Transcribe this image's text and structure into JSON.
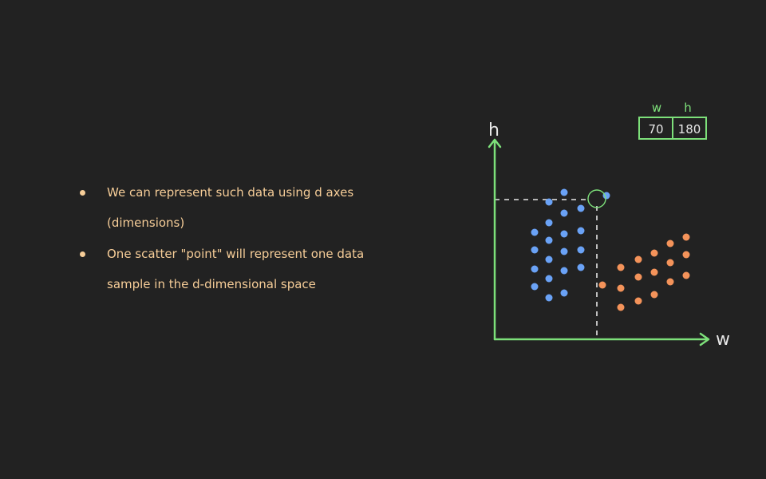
{
  "bullets": [
    "We can represent such data using d axes (dimensions)",
    "One scatter \"point\" will represent one data sample in the d-dimensional space"
  ],
  "colors": {
    "background": "#222222",
    "text": "#f6cd98",
    "axis": "#7de07a",
    "blue": "#6aa2f6",
    "orange": "#f4935a",
    "guide": "#e8e8e8"
  },
  "diagram": {
    "x_axis_label": "w",
    "y_axis_label": "h",
    "table": {
      "headers": [
        "w",
        "h"
      ],
      "values": [
        "70",
        "180"
      ]
    }
  },
  "chart_data": {
    "type": "scatter",
    "highlighted_point": {
      "w": 70,
      "h": 180
    },
    "series": [
      {
        "color": "blue",
        "points": [
          {
            "x": 0.68,
            "y": 0.86
          },
          {
            "x": 0.87,
            "y": 0.92
          },
          {
            "x": 1.08,
            "y": 0.82
          },
          {
            "x": 0.5,
            "y": 0.67
          },
          {
            "x": 0.68,
            "y": 0.73
          },
          {
            "x": 0.87,
            "y": 0.79
          },
          {
            "x": 1.08,
            "y": 0.68
          },
          {
            "x": 0.5,
            "y": 0.56
          },
          {
            "x": 0.68,
            "y": 0.62
          },
          {
            "x": 0.87,
            "y": 0.66
          },
          {
            "x": 1.08,
            "y": 0.56
          },
          {
            "x": 0.5,
            "y": 0.44
          },
          {
            "x": 0.68,
            "y": 0.5
          },
          {
            "x": 0.87,
            "y": 0.55
          },
          {
            "x": 1.08,
            "y": 0.45
          },
          {
            "x": 0.5,
            "y": 0.33
          },
          {
            "x": 0.68,
            "y": 0.38
          },
          {
            "x": 0.87,
            "y": 0.43
          },
          {
            "x": 0.68,
            "y": 0.26
          },
          {
            "x": 0.87,
            "y": 0.29
          },
          {
            "x": 1.4,
            "y": 0.9
          }
        ]
      },
      {
        "color": "orange",
        "points": [
          {
            "x": 1.35,
            "y": 0.34
          },
          {
            "x": 1.58,
            "y": 0.45
          },
          {
            "x": 1.58,
            "y": 0.32
          },
          {
            "x": 1.58,
            "y": 0.2
          },
          {
            "x": 1.8,
            "y": 0.5
          },
          {
            "x": 1.8,
            "y": 0.39
          },
          {
            "x": 1.8,
            "y": 0.24
          },
          {
            "x": 2.0,
            "y": 0.54
          },
          {
            "x": 2.0,
            "y": 0.42
          },
          {
            "x": 2.0,
            "y": 0.28
          },
          {
            "x": 2.2,
            "y": 0.6
          },
          {
            "x": 2.2,
            "y": 0.48
          },
          {
            "x": 2.2,
            "y": 0.36
          },
          {
            "x": 2.4,
            "y": 0.64
          },
          {
            "x": 2.4,
            "y": 0.53
          },
          {
            "x": 2.4,
            "y": 0.4
          }
        ]
      }
    ]
  }
}
